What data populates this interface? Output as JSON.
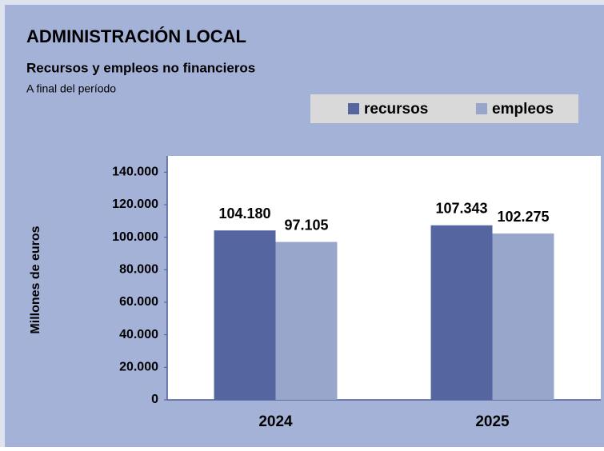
{
  "chart_data": {
    "type": "bar",
    "title": "ADMINISTRACIÓN LOCAL",
    "subtitle": "Recursos y empleos no financieros",
    "note": "A final del período",
    "y_label": "Millones de euros",
    "categories": [
      "2024",
      "2025"
    ],
    "series": [
      {
        "name": "recursos",
        "color": "#5565a0",
        "values": [
          104180,
          107343
        ],
        "value_labels": [
          "104.180",
          "107.343"
        ]
      },
      {
        "name": "empleos",
        "color": "#98a6cc",
        "values": [
          97105,
          102275
        ],
        "value_labels": [
          "97.105",
          "102.275"
        ]
      }
    ],
    "ylim": [
      0,
      150000
    ],
    "yticks": [
      0,
      {
        "value": 20000,
        "label": "20.000"
      },
      {
        "value": 40000,
        "label": "40.000"
      },
      {
        "value": 60000,
        "label": "60.000"
      },
      {
        "value": 80000,
        "label": "80.000"
      },
      {
        "value": 100000,
        "label": "100.000"
      },
      {
        "value": 120000,
        "label": "120.000"
      },
      {
        "value": 140000,
        "label": "140.000"
      }
    ],
    "grid": false,
    "legend": "top-right"
  }
}
